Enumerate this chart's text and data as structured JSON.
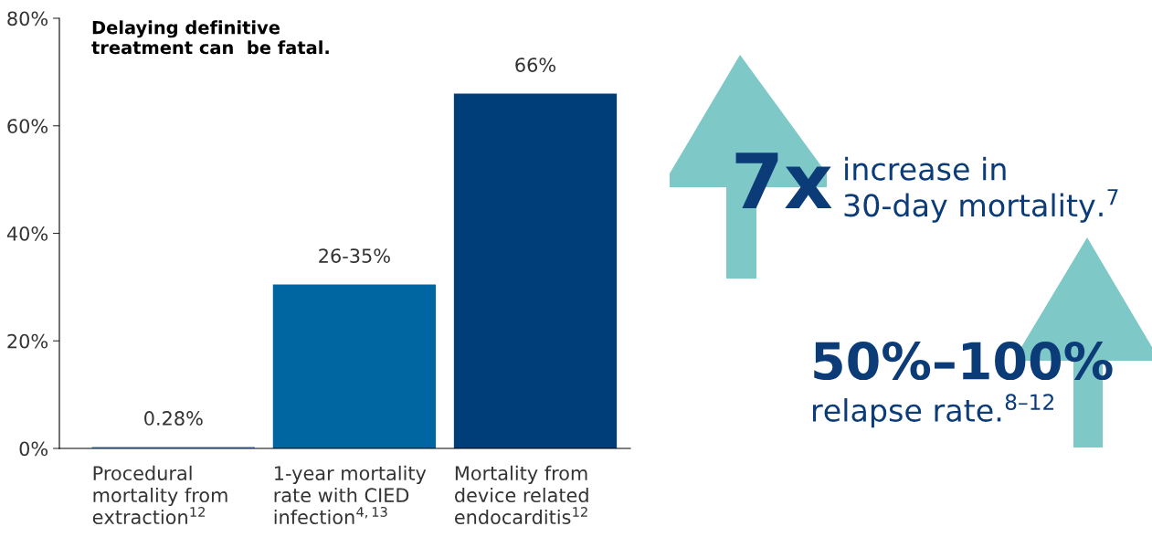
{
  "chart_data": {
    "type": "bar",
    "title": "Delaying definitive\ntreatment can  be fatal.",
    "categories": [
      "Procedural\nmortality from\nextraction$^{12}$",
      "1-year mortality\nrate with CIED\ninfection$^{4,13}$",
      "Mortality from\ndevice related\nendocarditis$^{12}$"
    ],
    "values": [
      0.28,
      30.5,
      66
    ],
    "colors": [
      "#6fa0dc",
      "#0066a1",
      "#003e7a"
    ],
    "value_labels": [
      "0.28%",
      null,
      "66%"
    ],
    "ylim": [
      0,
      80
    ],
    "yticks": [
      {
        "value": 0,
        "label": "0%"
      },
      {
        "value": 20,
        "label": "20%"
      },
      {
        "value": 40,
        "label": "40%"
      },
      {
        "value": 60,
        "label": "60%"
      },
      {
        "value": 80,
        "label": "80%"
      }
    ],
    "grid": false,
    "annotations": [
      {
        "text": "26-35%",
        "x": "1-year mortality\nrate with CIED\ninfection$^{4,13}$",
        "y": 30.5
      },
      "7x",
      "increase in\n30-day mortality.$^{7}$",
      "50%–100%",
      "relapse rate.$^{8–12}$"
    ]
  }
}
